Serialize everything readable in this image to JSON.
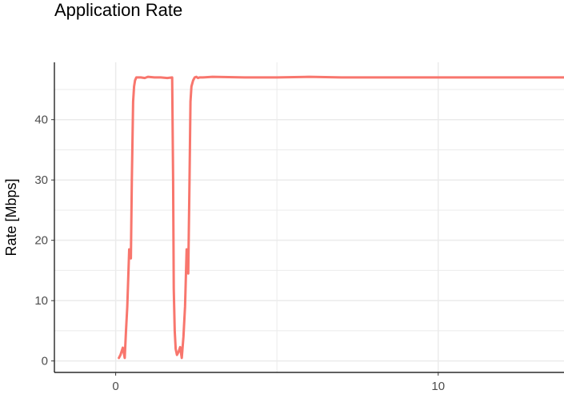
{
  "chart_data": {
    "type": "line",
    "title": "Application Rate",
    "xlabel": "",
    "ylabel": "Rate [Mbps]",
    "xlim": [
      -1.9,
      13.9
    ],
    "ylim": [
      -1.9,
      49.5
    ],
    "x_ticks": [
      0,
      10
    ],
    "y_ticks": [
      0,
      10,
      20,
      30,
      40
    ],
    "grid": true,
    "legend": "none",
    "colors": {
      "line": "#f8766d",
      "grid": "#ebebeb",
      "axis": "#000000"
    },
    "series": [
      {
        "x": [
          0.1,
          0.15,
          0.22,
          0.28,
          0.32,
          0.36,
          0.42,
          0.47,
          0.5,
          0.54,
          0.57,
          0.6,
          0.64,
          0.7,
          0.78,
          0.9,
          1.0,
          1.2,
          1.4,
          1.6,
          1.75,
          1.78,
          1.8,
          1.83,
          1.86,
          1.9,
          1.95,
          2.0,
          2.05,
          2.1,
          2.15,
          2.2,
          2.25,
          2.29,
          2.32,
          2.35,
          2.4,
          2.45,
          2.5,
          2.55,
          2.6,
          2.7,
          3.0,
          4.0,
          5.0,
          6.0,
          7.0,
          8.0,
          9.0,
          10.0,
          11.0,
          12.0,
          13.0,
          13.9
        ],
        "y": [
          0.5,
          1.0,
          2.2,
          0.5,
          5.0,
          9.0,
          18.5,
          17.0,
          30.0,
          43.0,
          45.5,
          46.5,
          47.0,
          47.0,
          47.0,
          46.9,
          47.1,
          47.0,
          47.0,
          46.9,
          47.0,
          30.0,
          12.0,
          5.0,
          2.0,
          1.0,
          1.5,
          2.3,
          0.5,
          4.0,
          9.0,
          18.5,
          14.5,
          30.0,
          43.0,
          45.5,
          46.5,
          47.0,
          47.1,
          46.9,
          47.0,
          47.0,
          47.1,
          47.0,
          47.0,
          47.1,
          47.0,
          47.0,
          47.0,
          47.0,
          47.0,
          47.0,
          47.0,
          47.0
        ]
      }
    ]
  }
}
